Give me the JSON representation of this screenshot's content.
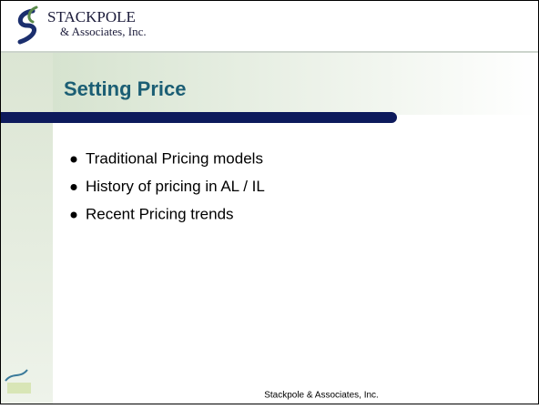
{
  "header": {
    "company": "STACKPOLE",
    "company_sub": "& Associates, Inc."
  },
  "slide": {
    "title": "Setting Price",
    "bullets": [
      "Traditional Pricing models",
      "History of pricing in AL / IL",
      "Recent Pricing trends"
    ]
  },
  "footer": {
    "text": "Stackpole & Associates, Inc."
  }
}
